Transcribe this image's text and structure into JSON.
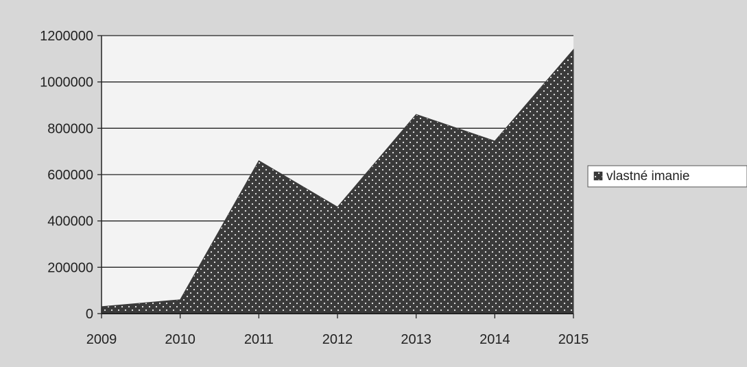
{
  "chart_data": {
    "type": "area",
    "categories": [
      "2009",
      "2010",
      "2011",
      "2012",
      "2013",
      "2014",
      "2015"
    ],
    "series": [
      {
        "name": "vlastné imanie",
        "values": [
          30000,
          60000,
          660000,
          460000,
          860000,
          745000,
          1140000
        ]
      }
    ],
    "ylim": [
      0,
      1200000
    ],
    "yticks": [
      "0",
      "200000",
      "400000",
      "600000",
      "800000",
      "1000000",
      "1200000"
    ],
    "grid": true,
    "legend": "right",
    "colors": {
      "page_background": "#d7d7d7",
      "plot_background": "#f3f3f3",
      "area_fill": "#3a3a3a",
      "area_dots": "#f0f0f0",
      "gridline": "#222222",
      "axis": "#222222"
    }
  }
}
